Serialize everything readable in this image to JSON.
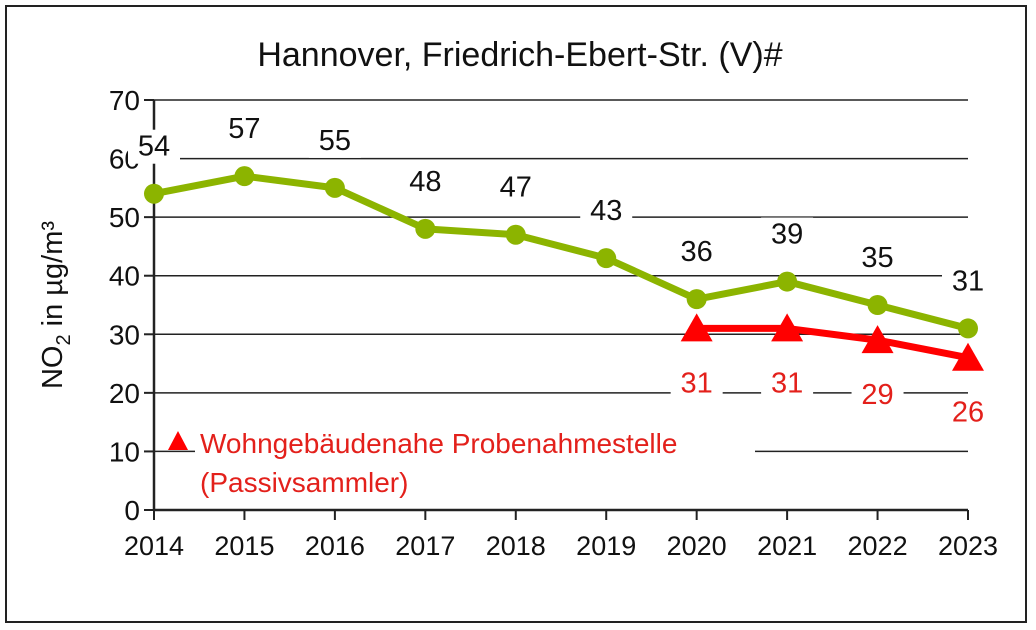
{
  "chart_data": {
    "type": "line",
    "title": "Hannover, Friedrich-Ebert-Str. (V)#",
    "ylabel": "NO2 in µg/m³",
    "ylabel_main": "NO",
    "ylabel_sub": "2",
    "ylabel_rest": " in µg/m³",
    "xlabel": "",
    "ylim": [
      0,
      70
    ],
    "yticks": [
      0,
      10,
      20,
      30,
      40,
      50,
      60,
      70
    ],
    "grid": true,
    "categories": [
      "2014",
      "2015",
      "2016",
      "2017",
      "2018",
      "2019",
      "2020",
      "2021",
      "2022",
      "2023"
    ],
    "series": [
      {
        "values": [
          54,
          57,
          55,
          48,
          47,
          43,
          36,
          39,
          35,
          31
        ],
        "color": "#8cb400",
        "marker": "circle"
      },
      {
        "name": "Wohngebäudenahe Probenahmestelle (Passivsammler)",
        "values": [
          null,
          null,
          null,
          null,
          null,
          null,
          31,
          31,
          29,
          26
        ],
        "color": "#ff0000",
        "marker": "triangle"
      }
    ],
    "legend": {
      "line1": "Wohngebäudenahe Probenahmestelle",
      "line2": "(Passivsammler)",
      "placement": "bottom-left",
      "color": "#e3201b"
    }
  }
}
